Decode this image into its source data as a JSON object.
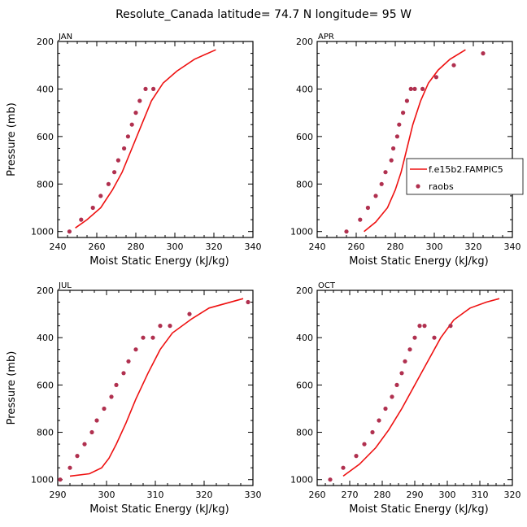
{
  "title": "Resolute_Canada   latitude= 74.7 N longitude= 95 W",
  "colors": {
    "model": "#ee1111",
    "obs": "#b0304f"
  },
  "legend": {
    "model_label": "f.e15b2.FAMPIC5",
    "obs_label": "raobs"
  },
  "chart_data": [
    {
      "type": "line",
      "panel": "JAN",
      "xlabel": "Moist Static Energy (kJ/kg)",
      "ylabel": "Pressure (mb)",
      "xlim": [
        240,
        340
      ],
      "xticks": [
        240,
        260,
        280,
        300,
        320,
        340
      ],
      "ylim": [
        1025,
        200
      ],
      "yticks": [
        200,
        400,
        600,
        800,
        1000
      ],
      "series": [
        {
          "name": "f.e15b2.FAMPIC5",
          "kind": "line",
          "x": [
            249,
            255,
            262,
            268,
            273,
            278,
            283,
            288,
            294,
            301,
            310,
            321
          ],
          "y": [
            985,
            950,
            900,
            825,
            750,
            650,
            550,
            450,
            375,
            325,
            275,
            235
          ]
        },
        {
          "name": "raobs",
          "kind": "scatter",
          "x": [
            246,
            252,
            258,
            262,
            266,
            269,
            271,
            274,
            276,
            278,
            280,
            282,
            285,
            289
          ],
          "y": [
            1000,
            950,
            900,
            850,
            800,
            750,
            700,
            650,
            600,
            550,
            500,
            450,
            400,
            400
          ]
        }
      ]
    },
    {
      "type": "line",
      "panel": "APR",
      "xlabel": "Moist Static Energy (kJ/kg)",
      "ylabel": "",
      "xlim": [
        240,
        340
      ],
      "xticks": [
        240,
        260,
        280,
        300,
        320,
        340
      ],
      "ylim": [
        1025,
        200
      ],
      "yticks": [
        200,
        400,
        600,
        800,
        1000
      ],
      "series": [
        {
          "name": "f.e15b2.FAMPIC5",
          "kind": "line",
          "x": [
            264,
            270,
            276,
            280,
            283,
            286,
            289,
            293,
            297,
            302,
            308,
            316
          ],
          "y": [
            1000,
            960,
            900,
            825,
            750,
            650,
            550,
            450,
            375,
            320,
            275,
            235
          ]
        },
        {
          "name": "raobs",
          "kind": "scatter",
          "x": [
            255,
            262,
            266,
            270,
            273,
            275,
            278,
            279,
            281,
            282,
            284,
            286,
            288,
            290,
            294,
            301,
            310,
            325
          ],
          "y": [
            1000,
            950,
            900,
            850,
            800,
            750,
            700,
            650,
            600,
            550,
            500,
            450,
            400,
            400,
            400,
            350,
            300,
            250
          ]
        }
      ]
    },
    {
      "type": "line",
      "panel": "JUL",
      "xlabel": "Moist Static Energy (kJ/kg)",
      "ylabel": "Pressure (mb)",
      "xlim": [
        290,
        330
      ],
      "xticks": [
        290,
        300,
        310,
        320,
        330
      ],
      "ylim": [
        1025,
        200
      ],
      "yticks": [
        200,
        400,
        600,
        800,
        1000
      ],
      "series": [
        {
          "name": "f.e15b2.FAMPIC5",
          "kind": "line",
          "x": [
            292.5,
            296.5,
            299,
            300.5,
            302,
            304,
            306,
            308.5,
            311,
            313.5,
            317.5,
            321,
            328
          ],
          "y": [
            985,
            975,
            950,
            910,
            850,
            760,
            660,
            550,
            450,
            380,
            320,
            275,
            235
          ]
        },
        {
          "name": "raobs",
          "kind": "scatter",
          "x": [
            290.5,
            292.5,
            294,
            295.5,
            297,
            298,
            299.5,
            301,
            302,
            303.5,
            304.5,
            306,
            307.5,
            309.5,
            311,
            313,
            317,
            329
          ],
          "y": [
            1000,
            950,
            900,
            850,
            800,
            750,
            700,
            650,
            600,
            550,
            500,
            450,
            400,
            400,
            350,
            350,
            300,
            250
          ]
        }
      ]
    },
    {
      "type": "line",
      "panel": "OCT",
      "xlabel": "Moist Static Energy (kJ/kg)",
      "ylabel": "",
      "xlim": [
        260,
        320
      ],
      "xticks": [
        260,
        270,
        280,
        290,
        300,
        310,
        320
      ],
      "ylim": [
        1025,
        200
      ],
      "yticks": [
        200,
        400,
        600,
        800,
        1000
      ],
      "series": [
        {
          "name": "f.e15b2.FAMPIC5",
          "kind": "line",
          "x": [
            268,
            273,
            278,
            282,
            286,
            290,
            294,
            298,
            302,
            307,
            312,
            316
          ],
          "y": [
            985,
            935,
            865,
            790,
            700,
            600,
            500,
            400,
            325,
            275,
            250,
            235
          ]
        },
        {
          "name": "raobs",
          "kind": "scatter",
          "x": [
            264,
            268,
            272,
            274.5,
            277,
            279,
            281,
            283,
            284.5,
            286,
            287,
            288.5,
            290,
            291.5,
            293,
            296,
            301
          ],
          "y": [
            1000,
            950,
            900,
            850,
            800,
            750,
            700,
            650,
            600,
            550,
            500,
            450,
            400,
            350,
            350,
            400,
            350
          ]
        }
      ]
    }
  ]
}
